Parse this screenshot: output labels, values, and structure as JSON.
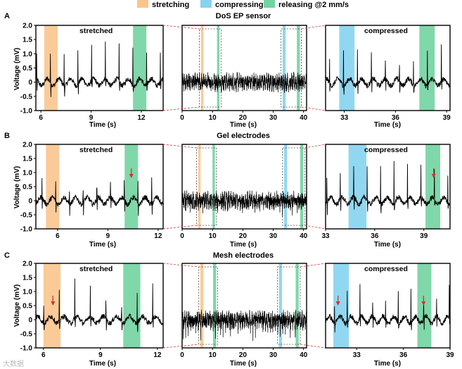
{
  "colors": {
    "stretch": "#f9c58d",
    "compress": "#86d3ef",
    "release": "#72d3a0",
    "trace": "#000000",
    "zoom": "#d0342c",
    "arrow": "#d0342c"
  },
  "legend": [
    {
      "key": "stretch",
      "label": "stretching"
    },
    {
      "key": "compress",
      "label": "compressing"
    },
    {
      "key": "release",
      "label": "releasing @2 mm/s"
    }
  ],
  "watermark": "大数据",
  "chart_data": {
    "type": "line",
    "ylabel": "Voltage (mV)",
    "xlabel": "Time (s)",
    "ylim": [
      -1.0,
      2.0
    ],
    "yticks": [
      "2.0",
      "1.5",
      "1.0",
      "0.5",
      "0",
      "-0.5",
      "-1.0"
    ],
    "rows": [
      {
        "label": "A",
        "title": "DoS EP sensor",
        "panels": [
          {
            "name": "left",
            "xlim": [
              5.7,
              13.3
            ],
            "xticks": [
              6,
              9,
              12
            ],
            "annotation": "stretched",
            "spans": [
              {
                "type": "stretch",
                "x": [
                  6.2,
                  7.0
                ]
              },
              {
                "type": "release",
                "x": [
                  11.5,
                  12.3
                ]
              }
            ],
            "arrows": []
          },
          {
            "name": "center",
            "xlim": [
              0,
              41
            ],
            "xticks": [
              0,
              10,
              20,
              30,
              40
            ],
            "annotation": "",
            "spans": [
              {
                "type": "stretch",
                "x": [
                  6.2,
                  7.0
                ]
              },
              {
                "type": "release",
                "x": [
                  11.5,
                  12.3
                ]
              },
              {
                "type": "compress",
                "x": [
                  33.1,
                  34.1
                ]
              },
              {
                "type": "release",
                "x": [
                  37.8,
                  38.8
                ]
              }
            ],
            "arrows": []
          },
          {
            "name": "right",
            "xlim": [
              31.9,
              39.2
            ],
            "xticks": [
              33,
              36,
              39
            ],
            "annotation": "compressed",
            "spans": [
              {
                "type": "compress",
                "x": [
                  32.7,
                  33.6
                ]
              },
              {
                "type": "release",
                "x": [
                  37.4,
                  38.3
                ]
              }
            ],
            "arrows": []
          }
        ]
      },
      {
        "label": "B",
        "title": "Gel electrodes",
        "panels": [
          {
            "name": "left",
            "xlim": [
              4.7,
              12.3
            ],
            "xticks": [
              6,
              9,
              12
            ],
            "annotation": "stretched",
            "spans": [
              {
                "type": "stretch",
                "x": [
                  5.3,
                  6.1
                ]
              },
              {
                "type": "release",
                "x": [
                  10.0,
                  10.8
                ]
              }
            ],
            "arrows": [
              {
                "x": 10.4,
                "y": 0.8
              }
            ]
          },
          {
            "name": "center",
            "xlim": [
              0,
              41
            ],
            "xticks": [
              0,
              10,
              20,
              30,
              40
            ],
            "annotation": "",
            "spans": [
              {
                "type": "stretch",
                "x": [
                  5.3,
                  6.1
                ]
              },
              {
                "type": "release",
                "x": [
                  10.0,
                  10.8
                ]
              },
              {
                "type": "compress",
                "x": [
                  33.6,
                  34.6
                ]
              },
              {
                "type": "release",
                "x": [
                  38.9,
                  39.9
                ]
              }
            ],
            "arrows": []
          },
          {
            "name": "right",
            "xlim": [
              33.0,
              40.6
            ],
            "xticks": [
              33,
              36,
              39
            ],
            "annotation": "compressed",
            "spans": [
              {
                "type": "compress",
                "x": [
                  34.4,
                  35.5
                ]
              },
              {
                "type": "release",
                "x": [
                  39.1,
                  40.0
                ]
              }
            ],
            "arrows": [
              {
                "x": 39.6,
                "y": 0.8
              }
            ]
          }
        ]
      },
      {
        "label": "C",
        "title": "Mesh electrodes",
        "panels": [
          {
            "name": "left",
            "xlim": [
              5.6,
              12.3
            ],
            "xticks": [
              6,
              9,
              12
            ],
            "annotation": "stretched",
            "spans": [
              {
                "type": "stretch",
                "x": [
                  6.0,
                  6.9
                ]
              },
              {
                "type": "release",
                "x": [
                  10.2,
                  11.1
                ]
              }
            ],
            "arrows": [
              {
                "x": 6.5,
                "y": 0.5
              }
            ]
          },
          {
            "name": "center",
            "xlim": [
              0,
              41
            ],
            "xticks": [
              0,
              10,
              20,
              30,
              40
            ],
            "annotation": "",
            "spans": [
              {
                "type": "stretch",
                "x": [
                  6.0,
                  7.0
                ]
              },
              {
                "type": "release",
                "x": [
                  10.2,
                  11.2
                ]
              },
              {
                "type": "compress",
                "x": [
                  31.9,
                  32.9
                ]
              },
              {
                "type": "release",
                "x": [
                  37.4,
                  38.4
                ]
              }
            ],
            "arrows": []
          },
          {
            "name": "right",
            "xlim": [
              31.0,
              39.0
            ],
            "xticks": [
              33,
              36,
              39
            ],
            "annotation": "compressed",
            "spans": [
              {
                "type": "compress",
                "x": [
                  31.5,
                  32.5
                ]
              },
              {
                "type": "release",
                "x": [
                  36.9,
                  37.8
                ]
              }
            ],
            "arrows": [
              {
                "x": 31.8,
                "y": 0.5
              },
              {
                "x": 37.3,
                "y": 0.5
              }
            ]
          }
        ]
      }
    ]
  }
}
